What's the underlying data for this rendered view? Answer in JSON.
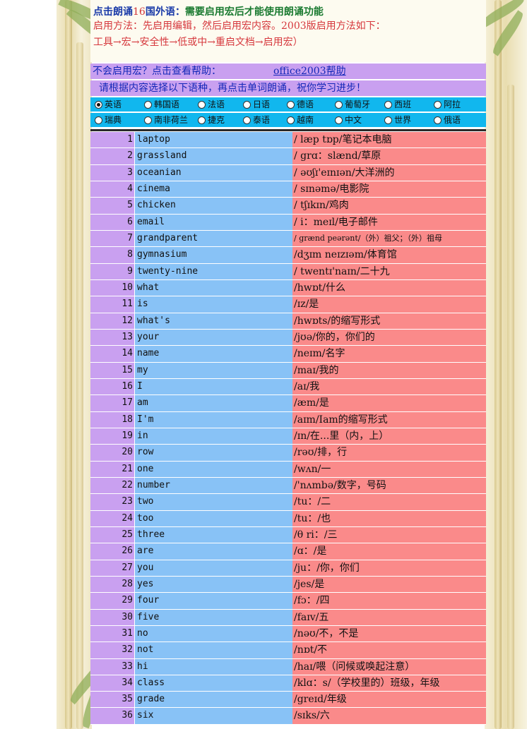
{
  "header": {
    "line1_prefix": "点击朗诵",
    "line1_num": "16",
    "line1_mid": "国外语：",
    "line1_notice": "需要启用宏后才能使用朗诵功能",
    "line2": "启用方法：先启用编辑，然后启用宏内容。2003版启用方法如下：",
    "line3": "工具→宏→安全性→低或中→重启文档→启用宏）"
  },
  "help_bar": {
    "text": "不会启用宏？点击查看帮助：",
    "link": "office2003帮助"
  },
  "hint_bar": {
    "text": "请根据内容选择以下语种，再点击单词朗诵，祝你学习进步！"
  },
  "languages_row1": [
    {
      "label": "英语",
      "selected": true
    },
    {
      "label": "韩国语",
      "selected": false
    },
    {
      "label": "法语",
      "selected": false
    },
    {
      "label": "日语",
      "selected": false
    },
    {
      "label": "德语",
      "selected": false
    },
    {
      "label": "葡萄牙",
      "selected": false
    },
    {
      "label": "西班",
      "selected": false
    },
    {
      "label": "阿拉",
      "selected": false
    }
  ],
  "languages_row2": [
    {
      "label": "瑞典",
      "selected": false
    },
    {
      "label": "南非荷兰",
      "selected": false
    },
    {
      "label": "捷克",
      "selected": false
    },
    {
      "label": "泰语",
      "selected": false
    },
    {
      "label": "越南",
      "selected": false
    },
    {
      "label": "中文",
      "selected": false
    },
    {
      "label": "世界",
      "selected": false
    },
    {
      "label": "俄语",
      "selected": false
    }
  ],
  "words": [
    {
      "num": "1",
      "word": "laptop",
      "meaning": "/  læp  tɒp/笔记本电脑"
    },
    {
      "num": "2",
      "word": "grassland",
      "meaning": " /  grɑ：slænd/草原"
    },
    {
      "num": "3",
      "word": "oceanian",
      "meaning": "/  əʊʃɪ'eɪnɪən/大洋洲的"
    },
    {
      "num": "4",
      "word": "cinema",
      "meaning": "/  sɪnəmə/电影院"
    },
    {
      "num": "5",
      "word": "chicken",
      "meaning": "/  tʃɪkɪn/鸡肉"
    },
    {
      "num": "6",
      "word": "email",
      "meaning": "/  i：meɪl/电子邮件"
    },
    {
      "num": "7",
      "word": "grandparent",
      "meaning": "/ grænd peərənt/（外）祖父；（外）祖母"
    },
    {
      "num": "8",
      "word": "gymnasium",
      "meaning": "/dʒɪm  neɪzɪəm/体育馆"
    },
    {
      "num": "9",
      "word": "twenty-nine",
      "meaning": "/  twentɪ'naɪn/二十九"
    },
    {
      "num": "10",
      "word": "what",
      "meaning": "/hwɒt/什么"
    },
    {
      "num": "11",
      "word": "is",
      "meaning": "/ɪz/是"
    },
    {
      "num": "12",
      "word": "what's",
      "meaning": "/hwɒts/的缩写形式"
    },
    {
      "num": "13",
      "word": "your",
      "meaning": "/jʊə/你的，你们的"
    },
    {
      "num": "14",
      "word": "name",
      "meaning": "/neɪm/名字"
    },
    {
      "num": "15",
      "word": "my",
      "meaning": "/maɪ/我的"
    },
    {
      "num": "16",
      "word": "I",
      "meaning": "/aɪ/我"
    },
    {
      "num": "17",
      "word": "am",
      "meaning": "/æm/是"
    },
    {
      "num": "18",
      "word": "I'm",
      "meaning": "/aɪm/Iam的缩写形式"
    },
    {
      "num": "19",
      "word": "in",
      "meaning": "/ɪn/在...里（内，上）"
    },
    {
      "num": "20",
      "word": "row",
      "meaning": "/rəʊ/排，行"
    },
    {
      "num": "21",
      "word": "one",
      "meaning": "/wʌn/一"
    },
    {
      "num": "22",
      "word": "number",
      "meaning": "/'nʌmbə/数字，号码"
    },
    {
      "num": "23",
      "word": "two",
      "meaning": "/tu：/二"
    },
    {
      "num": "24",
      "word": "too",
      "meaning": "/tu：/也"
    },
    {
      "num": "25",
      "word": "three",
      "meaning": "/θ ri：/三"
    },
    {
      "num": "26",
      "word": "are",
      "meaning": "/ɑ：/是"
    },
    {
      "num": "27",
      "word": "you",
      "meaning": "/ju：/你，你们"
    },
    {
      "num": "28",
      "word": "yes",
      "meaning": "/jes/是"
    },
    {
      "num": "29",
      "word": "four",
      "meaning": "/fɔ：/四"
    },
    {
      "num": "30",
      "word": "five",
      "meaning": "/faɪv/五"
    },
    {
      "num": "31",
      "word": "no",
      "meaning": "/nəʊ/不，不是"
    },
    {
      "num": "32",
      "word": "not",
      "meaning": "/nɒt/不"
    },
    {
      "num": "33",
      "word": "hi",
      "meaning": "/haɪ/喂（问候或唤起注意）"
    },
    {
      "num": "34",
      "word": "class",
      "meaning": "/klɑ：s/（学校里的）班级，年级"
    },
    {
      "num": "35",
      "word": "grade",
      "meaning": "/greɪd/年级"
    },
    {
      "num": "36",
      "word": "six",
      "meaning": "/sɪks/六"
    }
  ]
}
